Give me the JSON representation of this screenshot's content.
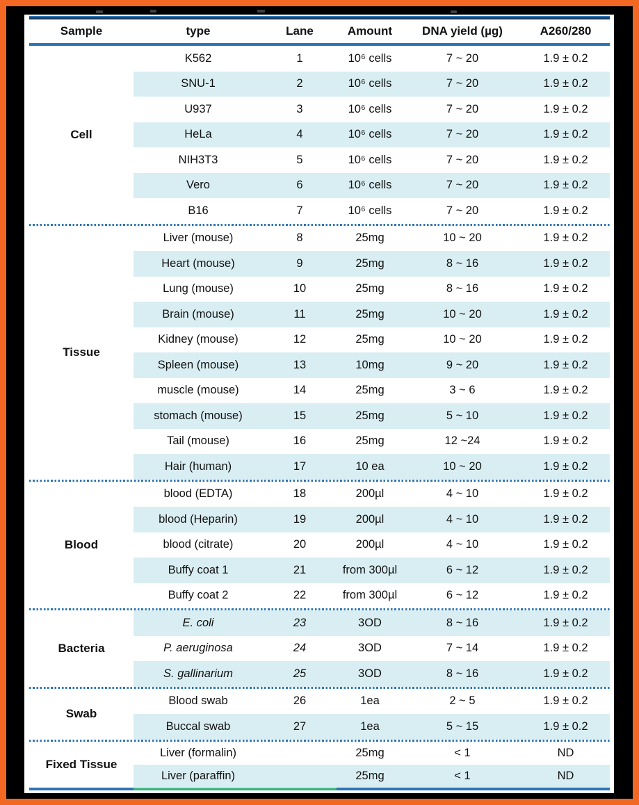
{
  "colors": {
    "border_orange": "#F26822",
    "accent_blue": "#2E75B6",
    "line_navy": "#1C3A5E",
    "row_shade_blue": "#D9EEF3",
    "bottom_green": "#33B57A"
  },
  "table": {
    "columns": [
      "Sample",
      "type",
      "Lane",
      "Amount",
      "DNA yield (µg)",
      "A260/280"
    ],
    "groups": [
      {
        "sample": "Cell",
        "rows": [
          {
            "type": "K562",
            "lane": "1",
            "amount": "10⁶ cells",
            "yield": "7 ~ 20",
            "ratio": "1.9 ± 0.2"
          },
          {
            "type": "SNU-1",
            "lane": "2",
            "amount": "10⁶ cells",
            "yield": "7 ~ 20",
            "ratio": "1.9 ± 0.2"
          },
          {
            "type": "U937",
            "lane": "3",
            "amount": "10⁶ cells",
            "yield": "7 ~ 20",
            "ratio": "1.9 ± 0.2"
          },
          {
            "type": "HeLa",
            "lane": "4",
            "amount": "10⁶ cells",
            "yield": "7 ~ 20",
            "ratio": "1.9 ± 0.2"
          },
          {
            "type": "NIH3T3",
            "lane": "5",
            "amount": "10⁶ cells",
            "yield": "7 ~ 20",
            "ratio": "1.9 ± 0.2"
          },
          {
            "type": "Vero",
            "lane": "6",
            "amount": "10⁶ cells",
            "yield": "7 ~ 20",
            "ratio": "1.9 ± 0.2"
          },
          {
            "type": "B16",
            "lane": "7",
            "amount": "10⁶ cells",
            "yield": "7 ~ 20",
            "ratio": "1.9 ± 0.2"
          }
        ]
      },
      {
        "sample": "Tissue",
        "rows": [
          {
            "type": "Liver (mouse)",
            "lane": "8",
            "amount": "25mg",
            "yield": "10 ~ 20",
            "ratio": "1.9 ± 0.2"
          },
          {
            "type": "Heart (mouse)",
            "lane": "9",
            "amount": "25mg",
            "yield": "8 ~ 16",
            "ratio": "1.9 ± 0.2"
          },
          {
            "type": "Lung (mouse)",
            "lane": "10",
            "amount": "25mg",
            "yield": "8 ~ 16",
            "ratio": "1.9 ± 0.2"
          },
          {
            "type": "Brain (mouse)",
            "lane": "11",
            "amount": "25mg",
            "yield": "10 ~ 20",
            "ratio": "1.9 ± 0.2"
          },
          {
            "type": "Kidney (mouse)",
            "lane": "12",
            "amount": "25mg",
            "yield": "10 ~ 20",
            "ratio": "1.9 ± 0.2"
          },
          {
            "type": "Spleen (mouse)",
            "lane": "13",
            "amount": "10mg",
            "yield": "9 ~ 20",
            "ratio": "1.9 ± 0.2"
          },
          {
            "type": "muscle (mouse)",
            "lane": "14",
            "amount": "25mg",
            "yield": "3 ~ 6",
            "ratio": "1.9 ± 0.2"
          },
          {
            "type": "stomach (mouse)",
            "lane": "15",
            "amount": "25mg",
            "yield": "5 ~ 10",
            "ratio": "1.9 ± 0.2"
          },
          {
            "type": "Tail (mouse)",
            "lane": "16",
            "amount": "25mg",
            "yield": "12 ~24",
            "ratio": "1.9 ± 0.2"
          },
          {
            "type": "Hair (human)",
            "lane": "17",
            "amount": "10 ea",
            "yield": "10 ~ 20",
            "ratio": "1.9 ± 0.2"
          }
        ]
      },
      {
        "sample": "Blood",
        "rows": [
          {
            "type": "blood (EDTA)",
            "lane": "18",
            "amount": "200µl",
            "yield": "4 ~ 10",
            "ratio": "1.9 ± 0.2"
          },
          {
            "type": "blood (Heparin)",
            "lane": "19",
            "amount": "200µl",
            "yield": "4 ~ 10",
            "ratio": "1.9 ± 0.2"
          },
          {
            "type": "blood (citrate)",
            "lane": "20",
            "amount": "200µl",
            "yield": "4 ~ 10",
            "ratio": "1.9 ± 0.2"
          },
          {
            "type": "Buffy coat 1",
            "lane": "21",
            "amount": "from 300µl",
            "yield": "6 ~ 12",
            "ratio": "1.9 ± 0.2"
          },
          {
            "type": "Buffy coat 2",
            "lane": "22",
            "amount": "from 300µl",
            "yield": "6 ~ 12",
            "ratio": "1.9 ± 0.2"
          }
        ]
      },
      {
        "sample": "Bacteria",
        "rows": [
          {
            "type": "E. coli",
            "lane": "23",
            "amount": "3OD",
            "yield": "8 ~ 16",
            "ratio": "1.9 ± 0.2",
            "italic": true
          },
          {
            "type": "P. aeruginosa",
            "lane": "24",
            "amount": "3OD",
            "yield": "7 ~ 14",
            "ratio": "1.9 ± 0.2",
            "italic": true
          },
          {
            "type": "S. gallinarium",
            "lane": "25",
            "amount": "3OD",
            "yield": "8 ~ 16",
            "ratio": "1.9 ± 0.2",
            "italic": true
          }
        ]
      },
      {
        "sample": "Swab",
        "rows": [
          {
            "type": "Blood swab",
            "lane": "26",
            "amount": "1ea",
            "yield": "2 ~ 5",
            "ratio": "1.9 ± 0.2"
          },
          {
            "type": "Buccal swab",
            "lane": "27",
            "amount": "1ea",
            "yield": "5 ~ 15",
            "ratio": "1.9 ± 0.2"
          }
        ]
      },
      {
        "sample": "Fixed Tissue",
        "rows": [
          {
            "type": "Liver (formalin)",
            "lane": "",
            "amount": "25mg",
            "yield": "< 1",
            "ratio": "ND"
          },
          {
            "type": "Liver (paraffin)",
            "lane": "",
            "amount": "25mg",
            "yield": "< 1",
            "ratio": "ND"
          }
        ]
      }
    ]
  }
}
